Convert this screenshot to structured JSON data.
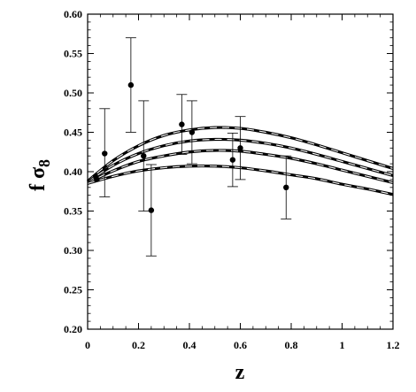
{
  "chart_data": {
    "type": "line",
    "xlabel": "z",
    "ylabel": {
      "main": "f σ",
      "subscript": "8"
    },
    "xlim": [
      0,
      1.2
    ],
    "ylim": [
      0.2,
      0.6
    ],
    "x_ticks": [
      0,
      0.2,
      0.4,
      0.6,
      0.8,
      1,
      1.2
    ],
    "x_tick_labels": [
      "0",
      "0.2",
      "0.4",
      "0.6",
      "0.8",
      "1",
      "1.2"
    ],
    "y_ticks": [
      0.2,
      0.25,
      0.3,
      0.35,
      0.4,
      0.45,
      0.5,
      0.55,
      0.6
    ],
    "y_tick_labels": [
      "0.20",
      "0.25",
      "0.30",
      "0.35",
      "0.40",
      "0.45",
      "0.50",
      "0.55",
      "0.60"
    ],
    "x_minor_step": 0.05,
    "y_minor_step": 0.01,
    "legend": "none",
    "grid": false,
    "curve_style": "dashed black on solid black",
    "series": [
      {
        "x": [
          0,
          0.1,
          0.2,
          0.3,
          0.4,
          0.5,
          0.6,
          0.7,
          0.8,
          0.9,
          1.0,
          1.1,
          1.2
        ],
        "values": [
          0.388,
          0.414,
          0.433,
          0.446,
          0.453,
          0.456,
          0.455,
          0.45,
          0.443,
          0.434,
          0.424,
          0.414,
          0.404
        ]
      },
      {
        "x": [
          0,
          0.1,
          0.2,
          0.3,
          0.4,
          0.5,
          0.6,
          0.7,
          0.8,
          0.9,
          1.0,
          1.1,
          1.2
        ],
        "values": [
          0.387,
          0.408,
          0.423,
          0.433,
          0.439,
          0.441,
          0.44,
          0.436,
          0.43,
          0.422,
          0.413,
          0.404,
          0.395
        ]
      },
      {
        "x": [
          0,
          0.1,
          0.2,
          0.3,
          0.4,
          0.5,
          0.6,
          0.7,
          0.8,
          0.9,
          1.0,
          1.1,
          1.2
        ],
        "values": [
          0.386,
          0.401,
          0.413,
          0.42,
          0.425,
          0.427,
          0.426,
          0.422,
          0.417,
          0.41,
          0.402,
          0.394,
          0.386
        ]
      },
      {
        "x": [
          0,
          0.1,
          0.2,
          0.3,
          0.4,
          0.5,
          0.6,
          0.7,
          0.8,
          0.9,
          1.0,
          1.1,
          1.2
        ],
        "values": [
          0.385,
          0.394,
          0.401,
          0.405,
          0.407,
          0.407,
          0.405,
          0.401,
          0.396,
          0.391,
          0.384,
          0.378,
          0.371
        ]
      }
    ],
    "points": [
      {
        "x": 0.067,
        "y": 0.423,
        "ylow": 0.368,
        "yhigh": 0.48
      },
      {
        "x": 0.17,
        "y": 0.51,
        "ylow": 0.45,
        "yhigh": 0.57
      },
      {
        "x": 0.22,
        "y": 0.42,
        "ylow": 0.35,
        "yhigh": 0.49
      },
      {
        "x": 0.25,
        "y": 0.351,
        "ylow": 0.293,
        "yhigh": 0.409
      },
      {
        "x": 0.37,
        "y": 0.46,
        "ylow": 0.422,
        "yhigh": 0.498
      },
      {
        "x": 0.41,
        "y": 0.45,
        "ylow": 0.41,
        "yhigh": 0.49
      },
      {
        "x": 0.57,
        "y": 0.415,
        "ylow": 0.381,
        "yhigh": 0.449
      },
      {
        "x": 0.6,
        "y": 0.43,
        "ylow": 0.39,
        "yhigh": 0.47
      },
      {
        "x": 0.78,
        "y": 0.38,
        "ylow": 0.34,
        "yhigh": 0.42
      }
    ]
  }
}
